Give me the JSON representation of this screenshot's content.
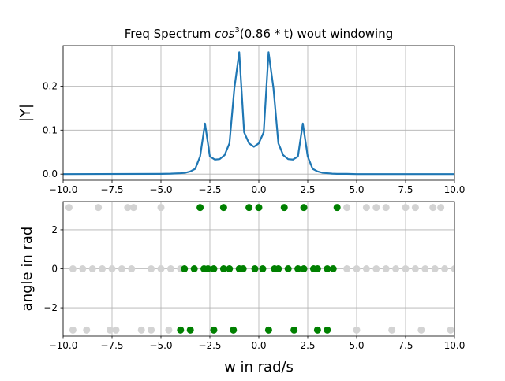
{
  "figure": {
    "title": "Freq Spectrum cos³(0.86 * t) wout windowing",
    "title_parts": {
      "prefix": "Freq Spectrum ",
      "func": "cos",
      "power": "3",
      "arg": "(0.86 * t)",
      "suffix": " wout windowing"
    },
    "background": "#ffffff"
  },
  "chart_data": [
    {
      "type": "line",
      "ylabel": "|Y|",
      "xlabel": "",
      "xlim": [
        -10,
        10
      ],
      "ylim": [
        -0.014,
        0.292
      ],
      "xticks": [
        -10.0,
        -7.5,
        -5.0,
        -2.5,
        0.0,
        2.5,
        5.0,
        7.5,
        10.0
      ],
      "yticks": [
        0.0,
        0.1,
        0.2
      ],
      "xtick_labels": [
        "−10.0",
        "−7.5",
        "−5.0",
        "−2.5",
        "0.0",
        "2.5",
        "5.0",
        "7.5",
        "10.0"
      ],
      "ytick_labels": [
        "0.0",
        "0.1",
        "0.2"
      ],
      "grid": true,
      "color": "#1f77b4",
      "series": [
        {
          "x": [
            -10.0,
            -5.0,
            -4.5,
            -4.0,
            -3.75,
            -3.5,
            -3.25,
            -3.0,
            -2.75,
            -2.5,
            -2.25,
            -2.0,
            -1.75,
            -1.5,
            -1.25,
            -1.0,
            -0.75,
            -0.5,
            -0.25,
            0.0,
            0.25,
            0.5,
            0.75,
            1.0,
            1.25,
            1.5,
            1.75,
            2.0,
            2.25,
            2.5,
            2.75,
            3.0,
            3.25,
            3.5,
            3.75,
            4.0,
            4.5,
            5.0,
            10.0
          ],
          "y": [
            0.0,
            0.0005,
            0.001,
            0.002,
            0.003,
            0.006,
            0.012,
            0.04,
            0.115,
            0.04,
            0.033,
            0.034,
            0.043,
            0.07,
            0.195,
            0.277,
            0.095,
            0.07,
            0.062,
            0.07,
            0.095,
            0.277,
            0.195,
            0.07,
            0.043,
            0.034,
            0.033,
            0.04,
            0.115,
            0.04,
            0.012,
            0.006,
            0.003,
            0.002,
            0.001,
            0.0005,
            0.0005,
            0.0,
            0.0
          ]
        }
      ]
    },
    {
      "type": "scatter",
      "ylabel": "angle in rad",
      "xlabel": "w in rad/s",
      "xlim": [
        -10,
        10
      ],
      "ylim": [
        -3.45,
        3.45
      ],
      "xticks": [
        -10.0,
        -7.5,
        -5.0,
        -2.5,
        0.0,
        2.5,
        5.0,
        7.5,
        10.0
      ],
      "yticks": [
        -2,
        0,
        2
      ],
      "xtick_labels": [
        "−10.0",
        "−7.5",
        "−5.0",
        "−2.5",
        "0.0",
        "2.5",
        "5.0",
        "7.5",
        "10.0"
      ],
      "ytick_labels": [
        "−2",
        "0",
        "2"
      ],
      "grid": true,
      "series": [
        {
          "color": "#d3d3d3",
          "points": [
            [
              -9.7,
              3.14
            ],
            [
              -8.2,
              3.14
            ],
            [
              -6.7,
              3.14
            ],
            [
              -6.4,
              3.14
            ],
            [
              -5.0,
              3.14
            ],
            [
              4.5,
              3.14
            ],
            [
              5.5,
              3.14
            ],
            [
              6.0,
              3.14
            ],
            [
              6.5,
              3.14
            ],
            [
              7.5,
              3.14
            ],
            [
              8.0,
              3.14
            ],
            [
              8.9,
              3.14
            ],
            [
              9.3,
              3.14
            ],
            [
              -9.5,
              0
            ],
            [
              -9.0,
              0
            ],
            [
              -8.5,
              0
            ],
            [
              -8.0,
              0
            ],
            [
              -7.5,
              0
            ],
            [
              -7.0,
              0
            ],
            [
              -6.5,
              0
            ],
            [
              -5.5,
              0
            ],
            [
              -5.0,
              0
            ],
            [
              -4.5,
              0
            ],
            [
              -4.0,
              0
            ],
            [
              4.5,
              0
            ],
            [
              5.0,
              0
            ],
            [
              5.5,
              0
            ],
            [
              6.0,
              0
            ],
            [
              6.5,
              0
            ],
            [
              7.0,
              0
            ],
            [
              7.5,
              0
            ],
            [
              8.0,
              0
            ],
            [
              8.5,
              0
            ],
            [
              9.0,
              0
            ],
            [
              9.5,
              0
            ],
            [
              10.0,
              0
            ],
            [
              -9.5,
              -3.14
            ],
            [
              -8.8,
              -3.14
            ],
            [
              -7.6,
              -3.14
            ],
            [
              -7.3,
              -3.14
            ],
            [
              -6.0,
              -3.14
            ],
            [
              -5.5,
              -3.14
            ],
            [
              -4.6,
              -3.14
            ],
            [
              5.0,
              -3.14
            ],
            [
              6.8,
              -3.14
            ],
            [
              8.3,
              -3.14
            ],
            [
              9.8,
              -3.14
            ]
          ]
        },
        {
          "color": "#008000",
          "points": [
            [
              -3.0,
              3.14
            ],
            [
              -1.8,
              3.14
            ],
            [
              -0.5,
              3.14
            ],
            [
              0.0,
              3.14
            ],
            [
              1.3,
              3.14
            ],
            [
              2.3,
              3.14
            ],
            [
              4.0,
              3.14
            ],
            [
              -3.8,
              0
            ],
            [
              -3.3,
              0
            ],
            [
              -2.8,
              0
            ],
            [
              -2.6,
              0
            ],
            [
              -2.3,
              0
            ],
            [
              -1.8,
              0
            ],
            [
              -1.5,
              0
            ],
            [
              -1.0,
              0
            ],
            [
              -0.8,
              0
            ],
            [
              -0.2,
              0
            ],
            [
              0.2,
              0
            ],
            [
              0.8,
              0
            ],
            [
              1.0,
              0
            ],
            [
              1.5,
              0
            ],
            [
              2.0,
              0
            ],
            [
              2.3,
              0
            ],
            [
              2.8,
              0
            ],
            [
              3.5,
              0
            ],
            [
              3.0,
              0
            ],
            [
              3.8,
              0
            ],
            [
              -4.0,
              -3.14
            ],
            [
              -3.5,
              -3.14
            ],
            [
              -2.3,
              -3.14
            ],
            [
              -1.3,
              -3.14
            ],
            [
              0.5,
              -3.14
            ],
            [
              1.8,
              -3.14
            ],
            [
              3.0,
              -3.14
            ],
            [
              3.5,
              -3.14
            ]
          ]
        }
      ]
    }
  ]
}
